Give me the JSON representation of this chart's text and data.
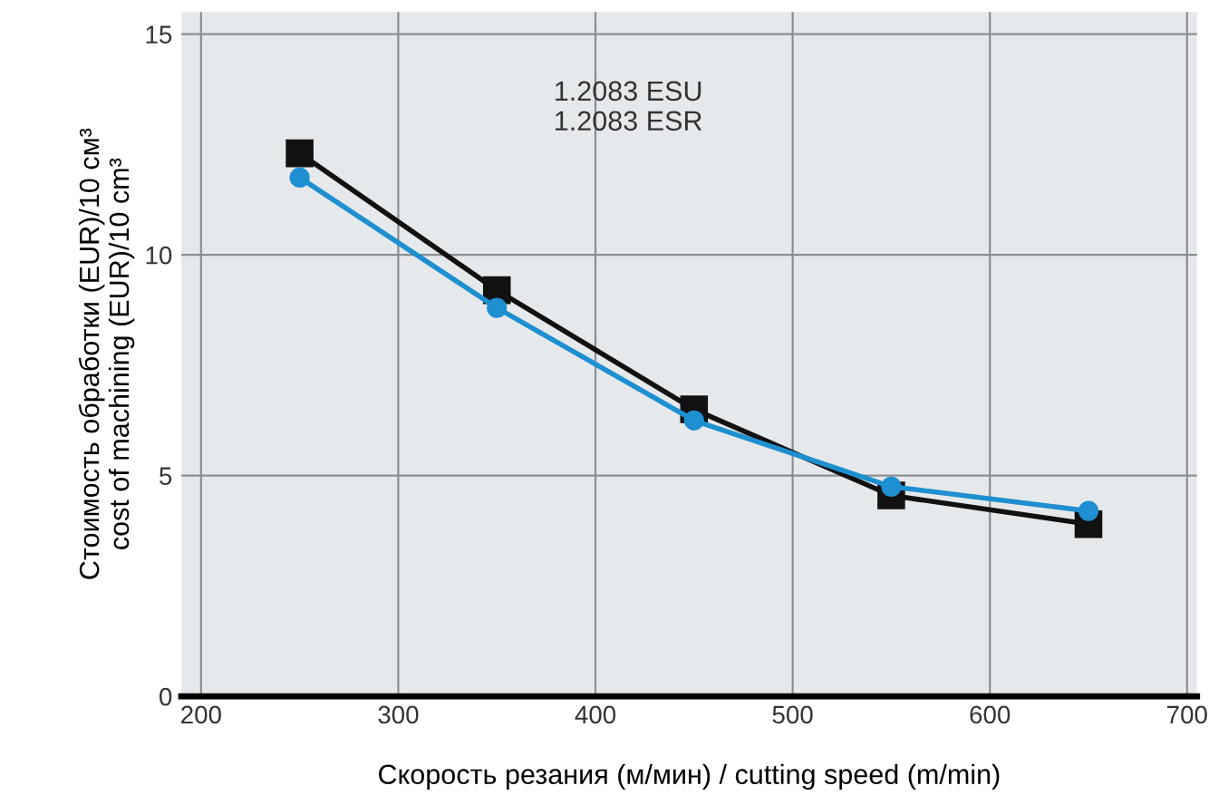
{
  "chart_data": {
    "type": "line",
    "xlabel": "Скорость резания (м/мин) / cutting speed (m/min)",
    "ylabel": "Стоимость обработки (EUR)/10 см³\ncost of machining (EUR)/10 cm³",
    "x": [
      250,
      350,
      450,
      550,
      650
    ],
    "series": [
      {
        "color": "#111111",
        "marker": "square",
        "values": [
          12.3,
          9.2,
          6.5,
          4.55,
          3.9
        ]
      },
      {
        "color": "#1e8fd0",
        "marker": "circle",
        "values": [
          11.75,
          8.8,
          6.25,
          4.75,
          4.2
        ]
      }
    ],
    "annotations": [
      "1.2083 ESU\n1.2083 ESR"
    ],
    "xlim": [
      190,
      705
    ],
    "xticks": [
      200,
      300,
      400,
      500,
      600,
      700
    ],
    "ylim": [
      0,
      15.5
    ],
    "yticks": [
      0,
      5,
      10,
      15
    ],
    "grid": true
  }
}
